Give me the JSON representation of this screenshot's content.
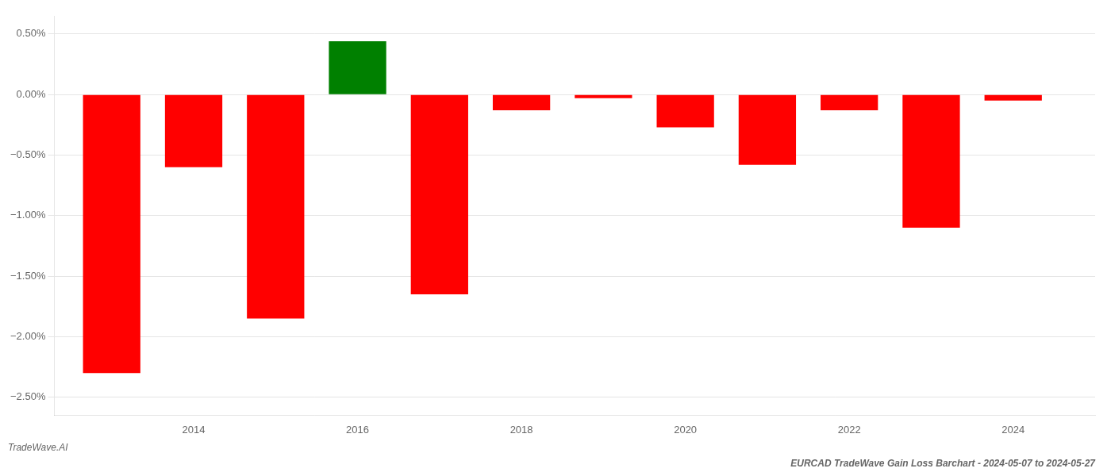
{
  "chart_data": {
    "type": "bar",
    "title": "EURCAD TradeWave Gain Loss Barchart - 2024-05-07 to 2024-05-27",
    "annotations": [
      "TradeWave.AI"
    ],
    "x": [
      2013,
      2014,
      2015,
      2016,
      2017,
      2018,
      2019,
      2020,
      2021,
      2022,
      2023,
      2024
    ],
    "values": [
      -2.3,
      -0.6,
      -1.85,
      0.44,
      -1.65,
      -0.13,
      -0.03,
      -0.27,
      -0.58,
      -0.13,
      -1.1,
      -0.05
    ],
    "colors": [
      "#ff0000",
      "#ff0000",
      "#ff0000",
      "#008000",
      "#ff0000",
      "#ff0000",
      "#ff0000",
      "#ff0000",
      "#ff0000",
      "#ff0000",
      "#ff0000",
      "#ff0000"
    ],
    "xlim": [
      2012.3,
      2025.0
    ],
    "xticks": [
      2014,
      2016,
      2018,
      2020,
      2022,
      2024
    ],
    "ylim": [
      -2.65,
      0.65
    ],
    "yticks": [
      {
        "value": 0.5,
        "label": "0.50%"
      },
      {
        "value": 0.0,
        "label": "0.00%"
      },
      {
        "value": -0.5,
        "label": "−0.50%"
      },
      {
        "value": -1.0,
        "label": "−1.00%"
      },
      {
        "value": -1.5,
        "label": "−1.50%"
      },
      {
        "value": -2.0,
        "label": "−2.00%"
      },
      {
        "value": -2.5,
        "label": "−2.50%"
      }
    ],
    "grid": "y"
  }
}
